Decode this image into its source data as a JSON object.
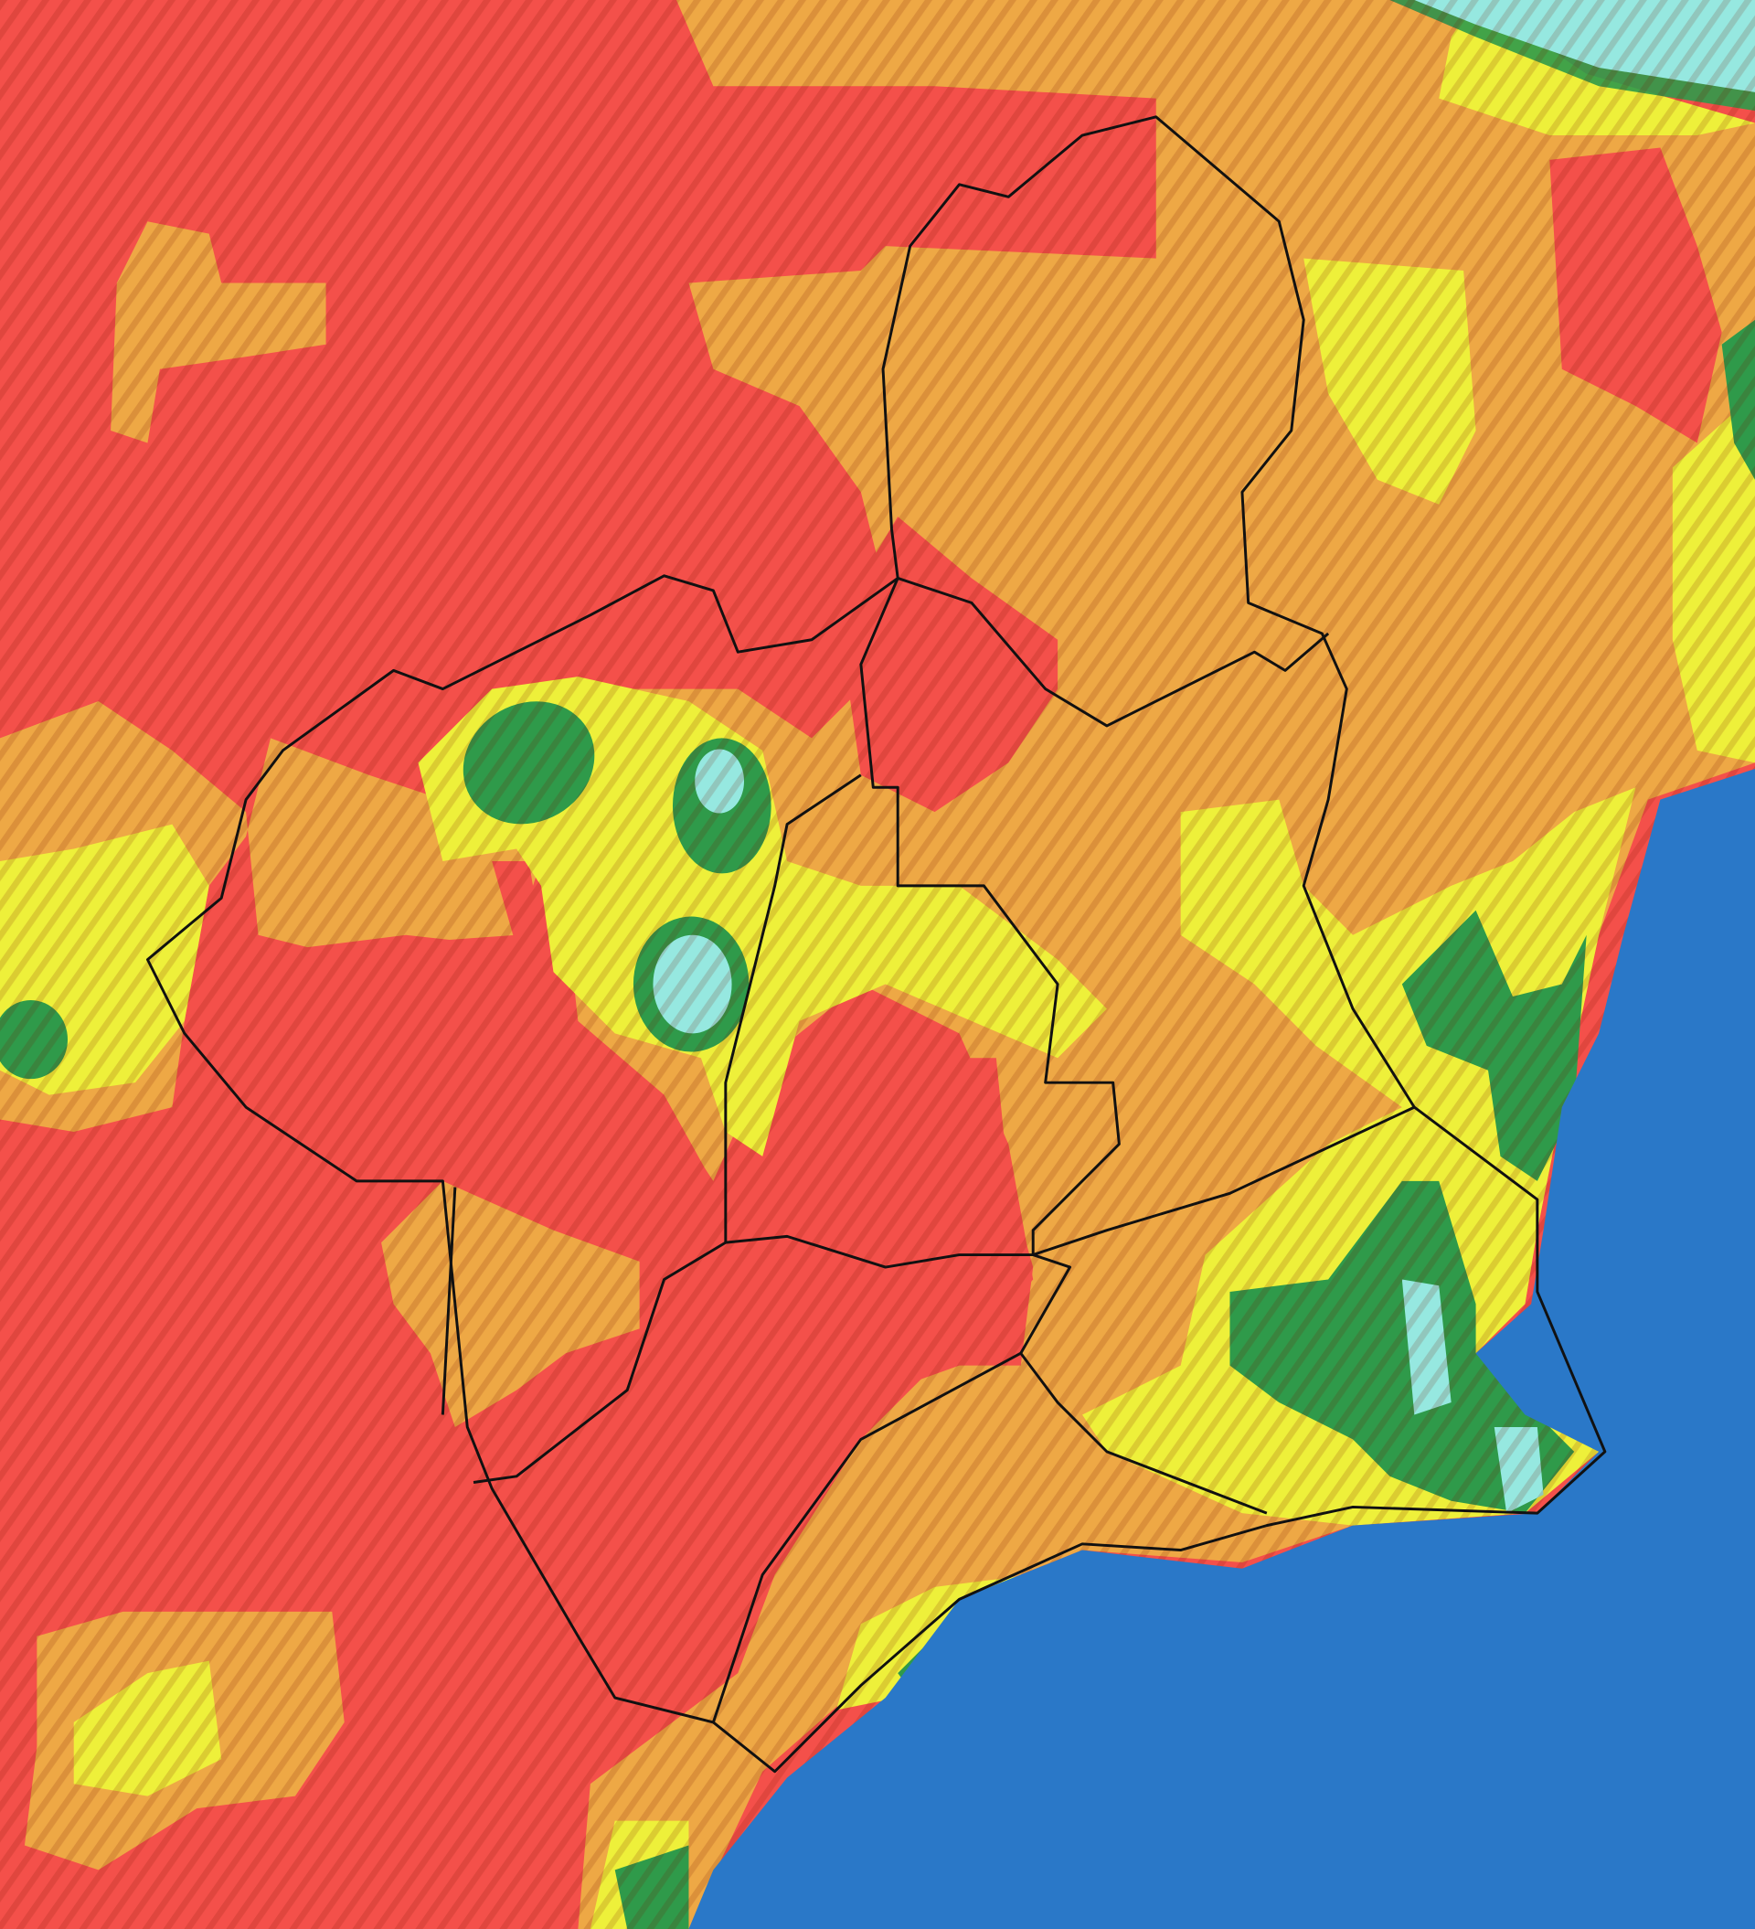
{
  "map": {
    "colors": {
      "very_high": "#f4504a",
      "high": "#eea845",
      "moderate": "#eef03a",
      "low": "#2f9a4a",
      "very_low": "#96e8e0",
      "sea": "#2a78c8",
      "boundary": "#111111"
    }
  }
}
